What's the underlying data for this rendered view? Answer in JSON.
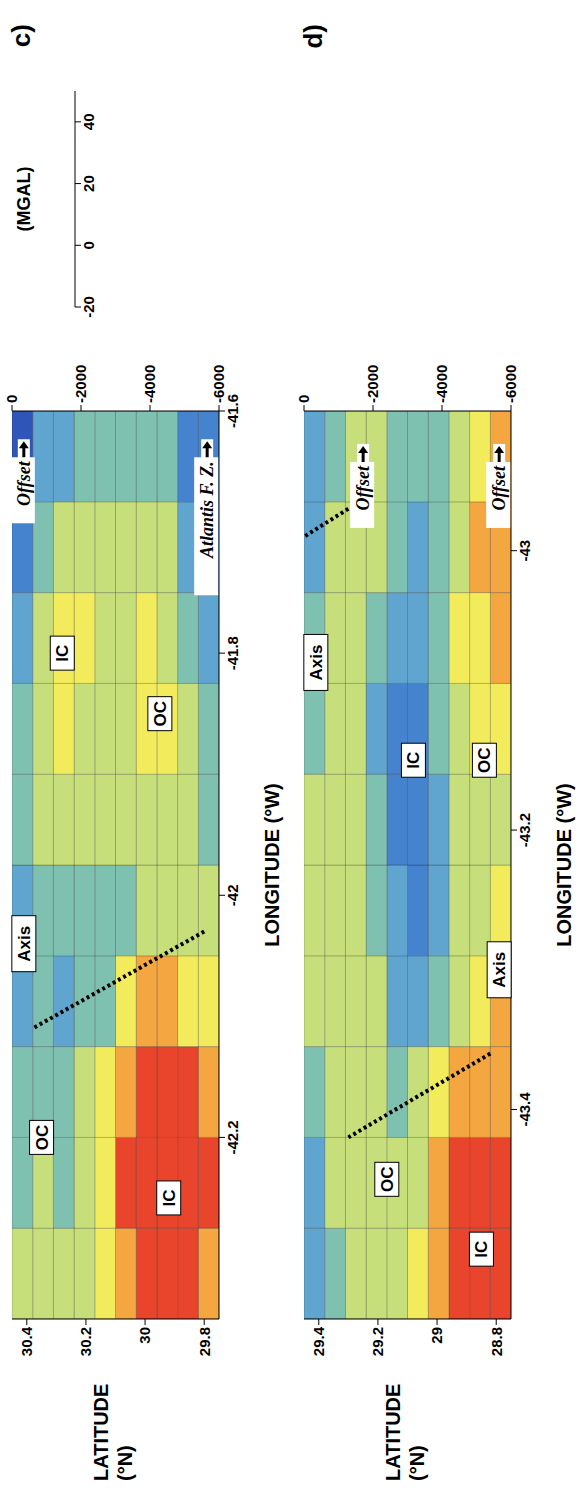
{
  "chart_data": [
    {
      "type": "heatmap",
      "panel": "c)",
      "x_label": "LONGITUDE (°W)",
      "y_label": "LATITUDE (°N)",
      "xlim": [
        -42.35,
        -41.6
      ],
      "xticks": [
        -42.2,
        -42,
        -41.8,
        -41.6
      ],
      "ylim": [
        29.75,
        30.45
      ],
      "yticks": [
        29.8,
        30,
        30.2,
        30.4
      ],
      "y2lim": [
        -6000,
        0
      ],
      "y2ticks": [
        -6000,
        -4000,
        -2000,
        0
      ],
      "lon_edges": [
        -42.35,
        -42.275,
        -42.2,
        -42.125,
        -42.05,
        -41.975,
        -41.9,
        -41.825,
        -41.75,
        -41.675,
        -41.6
      ],
      "lat_edges": [
        29.75,
        29.82,
        29.89,
        29.96,
        30.03,
        30.1,
        30.17,
        30.24,
        30.31,
        30.38,
        30.45
      ],
      "gravity": [
        [
          40,
          44,
          42,
          30,
          22,
          18,
          15,
          10,
          5,
          2
        ],
        [
          44,
          47,
          46,
          35,
          24,
          25,
          22,
          16,
          10,
          6
        ],
        [
          45,
          48,
          47,
          38,
          24,
          28,
          30,
          28,
          22,
          15
        ],
        [
          44,
          47,
          45,
          36,
          22,
          27,
          31,
          30,
          26,
          20
        ],
        [
          40,
          44,
          40,
          30,
          18,
          24,
          28,
          28,
          25,
          20
        ],
        [
          32,
          35,
          30,
          20,
          16,
          22,
          26,
          27,
          24,
          18
        ],
        [
          24,
          25,
          22,
          16,
          18,
          24,
          28,
          29,
          26,
          18
        ],
        [
          22,
          20,
          18,
          14,
          20,
          27,
          30,
          30,
          25,
          14
        ],
        [
          24,
          22,
          20,
          15,
          18,
          24,
          27,
          26,
          18,
          8
        ],
        [
          22,
          20,
          16,
          12,
          14,
          18,
          18,
          14,
          6,
          0
        ]
      ],
      "axis_lines": [
        {
          "lon": [
            -42.03,
            -42.11
          ],
          "lat": [
            29.8,
            30.38
          ]
        }
      ],
      "labels": [
        {
          "text": "IC",
          "lon": -42.25,
          "lat": 29.92
        },
        {
          "text": "OC",
          "lon": -42.2,
          "lat": 30.35
        },
        {
          "text": "IC",
          "lon": -41.8,
          "lat": 30.28
        },
        {
          "text": "OC",
          "lon": -41.85,
          "lat": 29.95
        },
        {
          "text": "Axis",
          "lon": -42.04,
          "lat": 30.41
        }
      ],
      "offsets": [
        {
          "text": "Offset",
          "lon": -41.625,
          "lat": 30.41
        },
        {
          "text": "Atlantis F. Z.",
          "lon": -41.625,
          "lat": 29.79
        }
      ],
      "colorbar": {
        "label": "(MGAL)",
        "range": [
          -20,
          50
        ],
        "ticks": [
          -20,
          0,
          20,
          40
        ],
        "bounds": [
          -20,
          -13,
          -6,
          1,
          8,
          15,
          22,
          29,
          36,
          43,
          50
        ],
        "colors": [
          "#1b0f45",
          "#252a8c",
          "#2f55b8",
          "#4683cf",
          "#5fa5cf",
          "#7fc1b0",
          "#c6df7a",
          "#f2ec5c",
          "#f4a640",
          "#e8452c"
        ]
      }
    },
    {
      "type": "heatmap",
      "panel": "d)",
      "x_label": "LONGITUDE (°W)",
      "y_label": "LATITUDE (°N)",
      "xlim": [
        -43.55,
        -42.9
      ],
      "xticks": [
        -43.4,
        -43.2,
        -43
      ],
      "ylim": [
        28.75,
        29.45
      ],
      "yticks": [
        28.8,
        29,
        29.2,
        29.4
      ],
      "y2lim": [
        -6000,
        0
      ],
      "y2ticks": [
        -6000,
        -4000,
        -2000,
        0
      ],
      "lon_edges": [
        -43.55,
        -43.485,
        -43.42,
        -43.355,
        -43.29,
        -43.225,
        -43.16,
        -43.095,
        -43.03,
        -42.965,
        -42.9
      ],
      "lat_edges": [
        28.75,
        28.82,
        28.89,
        28.96,
        29.03,
        29.1,
        29.17,
        29.24,
        29.31,
        29.38,
        29.45
      ],
      "gravity": [
        [
          44,
          46,
          42,
          36,
          30,
          28,
          32,
          38,
          42,
          40
        ],
        [
          46,
          48,
          42,
          34,
          26,
          26,
          30,
          34,
          36,
          30
        ],
        [
          44,
          46,
          38,
          28,
          22,
          24,
          28,
          30,
          28,
          22
        ],
        [
          38,
          36,
          30,
          20,
          12,
          12,
          16,
          20,
          20,
          18
        ],
        [
          30,
          28,
          22,
          14,
          6,
          4,
          6,
          10,
          14,
          16
        ],
        [
          26,
          24,
          20,
          14,
          8,
          6,
          6,
          10,
          16,
          20
        ],
        [
          26,
          26,
          26,
          22,
          18,
          16,
          14,
          18,
          24,
          26
        ],
        [
          24,
          26,
          28,
          28,
          26,
          24,
          22,
          24,
          26,
          24
        ],
        [
          18,
          22,
          26,
          28,
          28,
          26,
          24,
          22,
          22,
          16
        ],
        [
          10,
          14,
          20,
          24,
          26,
          24,
          20,
          18,
          14,
          8
        ]
      ],
      "axis_lines": [
        {
          "lon": [
            -43.36,
            -43.42
          ],
          "lat": [
            28.82,
            29.3
          ]
        },
        {
          "lon": [
            -42.97,
            -42.99
          ],
          "lat": [
            29.3,
            29.45
          ]
        }
      ],
      "labels": [
        {
          "text": "IC",
          "lon": -43.5,
          "lat": 28.85
        },
        {
          "text": "OC",
          "lon": -43.45,
          "lat": 29.17
        },
        {
          "text": "IC",
          "lon": -43.15,
          "lat": 29.08
        },
        {
          "text": "OC",
          "lon": -43.15,
          "lat": 28.84
        },
        {
          "text": "Axis",
          "lon": -43.3,
          "lat": 28.79
        },
        {
          "text": "Axis",
          "lon": -43.08,
          "lat": 29.41
        }
      ],
      "offsets": [
        {
          "text": "Offset",
          "lon": -42.925,
          "lat": 29.25
        },
        {
          "text": "Offset",
          "lon": -42.925,
          "lat": 28.79
        }
      ]
    }
  ]
}
